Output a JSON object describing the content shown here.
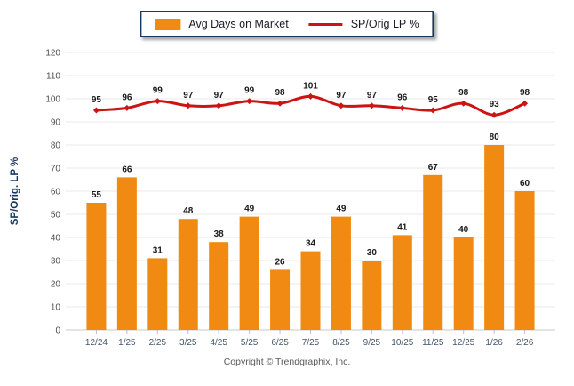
{
  "legend": {
    "bar_label": "Avg Days on Market",
    "line_label": "SP/Orig LP %"
  },
  "axis": {
    "y_title": "SP/Orig. LP %"
  },
  "footer": "Copyright © Trendgraphix, Inc.",
  "colors": {
    "bar": "#F08A12",
    "line": "#CC1414",
    "navy": "#17375E",
    "grid": "#EAEAEA",
    "axis_line": "#C8C8C8",
    "tick_mark": "#BFBFBF",
    "y_tick_text": "#4D4D4D",
    "x_tick_text": "#44546A",
    "data_label": "#1A1A1A",
    "footer_text": "#595959"
  },
  "chart_data": {
    "type": "bar+line",
    "title": "",
    "categories": [
      "12/24",
      "1/25",
      "2/25",
      "3/25",
      "4/25",
      "5/25",
      "6/25",
      "7/25",
      "8/25",
      "9/25",
      "10/25",
      "11/25",
      "12/25",
      "1/26",
      "2/26"
    ],
    "series": [
      {
        "name": "Avg Days on Market",
        "type": "bar",
        "color": "#F08A12",
        "values": [
          55,
          66,
          31,
          48,
          38,
          49,
          26,
          34,
          49,
          30,
          41,
          67,
          40,
          80,
          60
        ]
      },
      {
        "name": "SP/Orig LP %",
        "type": "line",
        "color": "#CC1414",
        "values": [
          95,
          96,
          99,
          97,
          97,
          99,
          98,
          101,
          97,
          97,
          96,
          95,
          98,
          93,
          98
        ]
      }
    ],
    "xlabel": "",
    "ylabel": "SP/Orig. LP %",
    "ylim": [
      0,
      120
    ],
    "ytick_step": 10,
    "grid": true,
    "data_labels": true,
    "legend_position": "top-center"
  }
}
